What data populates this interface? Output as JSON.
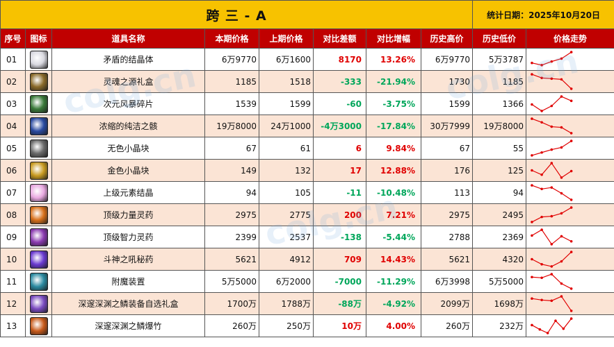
{
  "title": "跨 三 - A",
  "date_label": "统计日期：2025年10月20日",
  "headers": [
    "序号",
    "图标",
    "道具名称",
    "本期价格",
    "上期价格",
    "对比差额",
    "对比增幅",
    "历史高价",
    "历史低价",
    "价格走势"
  ],
  "watermark": "colg.cn",
  "colors": {
    "header_bg": "#c00000",
    "title_bg": "#f7c200",
    "up": "#e00000",
    "down": "#00a65a",
    "row_alt": "#fbe4d5",
    "trend": "#e00000"
  },
  "rows": [
    {
      "idx": "01",
      "icon": "white-crystal-icon",
      "icon_color": "#d9d9e0",
      "name": "矛盾的结晶体",
      "cur": "6万9770",
      "prev": "6万1600",
      "diff": "8170",
      "pct": "13.26%",
      "dir": "up",
      "high": "6万9770",
      "low": "5万3787",
      "trend": [
        0.25,
        0.1,
        0.35,
        0.55,
        1.0
      ]
    },
    {
      "idx": "02",
      "icon": "soul-gift-box-icon",
      "icon_color": "#8a6a2a",
      "name": "灵魂之源礼盒",
      "cur": "1185",
      "prev": "1518",
      "diff": "-333",
      "pct": "-21.94%",
      "dir": "down",
      "high": "1730",
      "low": "1185",
      "trend": [
        1.0,
        0.75,
        0.7,
        0.65,
        0.0
      ]
    },
    {
      "idx": "03",
      "icon": "storm-shard-icon",
      "icon_color": "#3a7a3a",
      "name": "次元风暴碎片",
      "cur": "1539",
      "prev": "1599",
      "diff": "-60",
      "pct": "-3.75%",
      "dir": "down",
      "high": "1599",
      "low": "1366",
      "trend": [
        0.45,
        0.0,
        0.35,
        1.0,
        0.7
      ]
    },
    {
      "idx": "04",
      "icon": "pure-skull-icon",
      "icon_color": "#2a4aa0",
      "name": "浓缩的纯洁之骸",
      "cur": "19万8000",
      "prev": "24万1000",
      "diff": "-4万3000",
      "pct": "-17.84%",
      "dir": "down",
      "high": "30万7999",
      "low": "19万8000",
      "trend": [
        1.0,
        0.75,
        0.45,
        0.4,
        0.0
      ]
    },
    {
      "idx": "05",
      "icon": "colorless-cube-icon",
      "icon_color": "#6a6a6a",
      "name": "无色小晶块",
      "cur": "67",
      "prev": "61",
      "diff": "6",
      "pct": "9.84%",
      "dir": "up",
      "high": "67",
      "low": "55",
      "trend": [
        0.0,
        0.2,
        0.4,
        0.55,
        1.0
      ]
    },
    {
      "idx": "06",
      "icon": "gold-cube-icon",
      "icon_color": "#c89a20",
      "name": "金色小晶块",
      "cur": "149",
      "prev": "132",
      "diff": "17",
      "pct": "12.88%",
      "dir": "up",
      "high": "176",
      "low": "125",
      "trend": [
        0.5,
        0.2,
        1.0,
        0.0,
        0.45
      ]
    },
    {
      "idx": "07",
      "icon": "element-crystal-icon",
      "icon_color": "#e8a8e0",
      "name": "上级元素结晶",
      "cur": "94",
      "prev": "105",
      "diff": "-11",
      "pct": "-10.48%",
      "dir": "down",
      "high": "113",
      "low": "94",
      "trend": [
        1.0,
        0.75,
        0.85,
        0.45,
        0.0
      ]
    },
    {
      "idx": "08",
      "icon": "strength-potion-icon",
      "icon_color": "#d8701a",
      "name": "顶级力量灵药",
      "cur": "2975",
      "prev": "2775",
      "diff": "200",
      "pct": "7.21%",
      "dir": "up",
      "high": "2975",
      "low": "2495",
      "trend": [
        0.0,
        0.35,
        0.4,
        0.6,
        1.0
      ]
    },
    {
      "idx": "09",
      "icon": "intellect-potion-icon",
      "icon_color": "#8a3ab0",
      "name": "顶级智力灵药",
      "cur": "2399",
      "prev": "2537",
      "diff": "-138",
      "pct": "-5.44%",
      "dir": "down",
      "high": "2788",
      "low": "2369",
      "trend": [
        0.6,
        1.0,
        0.0,
        0.55,
        0.2
      ]
    },
    {
      "idx": "10",
      "icon": "war-god-potion-icon",
      "icon_color": "#6a3ad0",
      "name": "斗神之吼秘药",
      "cur": "5621",
      "prev": "4912",
      "diff": "709",
      "pct": "14.43%",
      "dir": "up",
      "high": "5621",
      "low": "4320",
      "trend": [
        0.5,
        0.15,
        0.0,
        0.35,
        1.0
      ]
    },
    {
      "idx": "11",
      "icon": "enchant-device-icon",
      "icon_color": "#2a8aa0",
      "name": "附魔装置",
      "cur": "5万5000",
      "prev": "6万2000",
      "diff": "-7000",
      "pct": "-11.29%",
      "dir": "down",
      "high": "6万3998",
      "low": "5万5000",
      "trend": [
        0.8,
        0.75,
        1.0,
        0.35,
        0.0
      ]
    },
    {
      "idx": "12",
      "icon": "abyss-gift-box-icon",
      "icon_color": "#7a4ac0",
      "name": "深邃深渊之鳞装备自选礼盒",
      "cur": "1700万",
      "prev": "1788万",
      "diff": "-88万",
      "pct": "-4.92%",
      "dir": "down",
      "high": "2099万",
      "low": "1698万",
      "trend": [
        0.85,
        0.75,
        0.7,
        1.0,
        0.0
      ]
    },
    {
      "idx": "13",
      "icon": "abyss-firecracker-icon",
      "icon_color": "#c85a1a",
      "name": "深邃深渊之鳞爆竹",
      "cur": "260万",
      "prev": "250万",
      "diff": "10万",
      "pct": "4.00%",
      "dir": "up",
      "high": "260万",
      "low": "232万",
      "trend": [
        0.55,
        0.25,
        0.0,
        0.85,
        0.3,
        1.0
      ]
    }
  ]
}
